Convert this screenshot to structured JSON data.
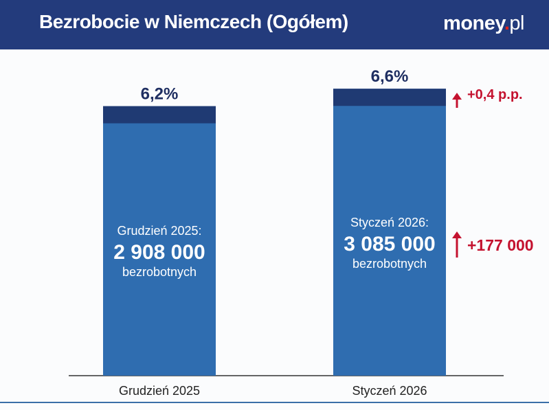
{
  "header": {
    "title": "Bezrobocie w Niemczech (Ogółem)",
    "logo_main": "money",
    "logo_dot": ".",
    "logo_suffix": "pl"
  },
  "chart_data": {
    "type": "bar",
    "title": "Bezrobocie w Niemczech (Ogółem)",
    "categories": [
      "Grudzień 2025",
      "Styczeń 2026"
    ],
    "values": [
      6.2,
      6.6
    ],
    "value_labels": [
      "6,2%",
      "6,6%"
    ],
    "unit": "%",
    "ylim": [
      0,
      6.6
    ],
    "grid": false,
    "bar_inner_labels": [
      {
        "period": "Grudzień 2025:",
        "count": "2 908 000",
        "suffix": "bezrobotnych"
      },
      {
        "period": "Styczeń 2026:",
        "count": "3 085 000",
        "suffix": "bezrobotnych"
      }
    ],
    "unemployed_counts": [
      2908000,
      3085000
    ],
    "annotations": [
      {
        "text": "+0,4 p.p.",
        "icon": "arrow-up-icon"
      },
      {
        "text": "+177 000",
        "icon": "arrow-up-icon"
      }
    ],
    "colors": {
      "bar": "#2f6db0",
      "bar_top": "#1f3a73",
      "delta": "#c4122f",
      "header": "#233b7c"
    }
  }
}
